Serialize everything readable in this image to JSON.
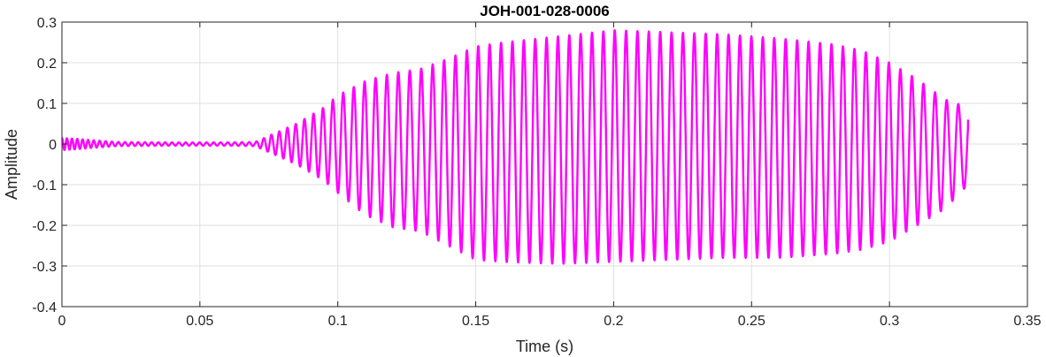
{
  "chart_data": {
    "type": "line",
    "title": "JOH-001-028-0006",
    "xlabel": "Time (s)",
    "ylabel": "Amplitude",
    "xlim": [
      0,
      0.35
    ],
    "ylim": [
      -0.4,
      0.3
    ],
    "xticks": [
      0,
      0.05,
      0.1,
      0.15,
      0.2,
      0.25,
      0.3,
      0.35
    ],
    "xtick_labels": [
      "0",
      "0.05",
      "0.1",
      "0.15",
      "0.2",
      "0.25",
      "0.3",
      "0.35"
    ],
    "yticks": [
      -0.4,
      -0.3,
      -0.2,
      -0.1,
      0,
      0.1,
      0.2,
      0.3
    ],
    "ytick_labels": [
      "-0.4",
      "-0.3",
      "-0.2",
      "-0.1",
      "0",
      "0.1",
      "0.2",
      "0.3"
    ],
    "grid": true,
    "series": [
      {
        "color": "#ff00ff",
        "start_time": 0,
        "end_time": 0.3285,
        "end_value": 0.06,
        "envelope": {
          "time": [
            0,
            0.005,
            0.01,
            0.02,
            0.04,
            0.06,
            0.07,
            0.075,
            0.085,
            0.095,
            0.1,
            0.11,
            0.12,
            0.13,
            0.14,
            0.15,
            0.16,
            0.18,
            0.2,
            0.22,
            0.24,
            0.26,
            0.28,
            0.29,
            0.3,
            0.31,
            0.32,
            0.3285
          ],
          "upper": [
            0.015,
            0.013,
            0.01,
            0.005,
            0.004,
            0.004,
            0.005,
            0.02,
            0.05,
            0.09,
            0.12,
            0.155,
            0.175,
            0.185,
            0.21,
            0.24,
            0.25,
            0.265,
            0.28,
            0.275,
            0.27,
            0.26,
            0.245,
            0.23,
            0.2,
            0.16,
            0.11,
            0.09
          ],
          "lower": [
            -0.015,
            -0.013,
            -0.01,
            -0.005,
            -0.004,
            -0.004,
            -0.005,
            -0.02,
            -0.05,
            -0.09,
            -0.12,
            -0.175,
            -0.205,
            -0.215,
            -0.25,
            -0.285,
            -0.29,
            -0.295,
            -0.29,
            -0.285,
            -0.28,
            -0.28,
            -0.27,
            -0.26,
            -0.24,
            -0.2,
            -0.16,
            -0.1
          ]
        },
        "frequency": {
          "time": [
            0,
            0.02,
            0.07,
            0.1,
            0.12,
            0.14,
            0.2,
            0.3,
            0.3285
          ],
          "hz": [
            560,
            420,
            380,
            265,
            240,
            242,
            243,
            240,
            236
          ]
        }
      }
    ]
  }
}
